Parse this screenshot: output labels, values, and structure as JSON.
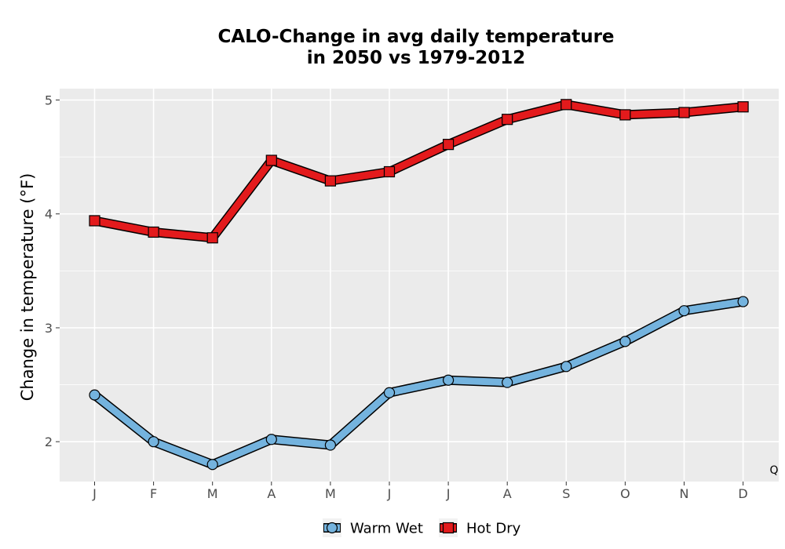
{
  "chart_data": {
    "type": "line",
    "title_line1": "CALO-Change in avg daily temperature",
    "title_line2": "in 2050 vs 1979-2012",
    "xlabel": "",
    "ylabel": "Change in temperature (°F)",
    "categories": [
      "J",
      "F",
      "M",
      "A",
      "M",
      "J",
      "J",
      "A",
      "S",
      "O",
      "N",
      "D"
    ],
    "ylim": [
      1.65,
      5.1
    ],
    "yticks": [
      2,
      3,
      4,
      5
    ],
    "grid": true,
    "legend_position": "bottom",
    "corner_label": "Q",
    "series": [
      {
        "name": "Warm Wet",
        "marker": "circle",
        "color": "#74b3de",
        "values": [
          2.41,
          2.0,
          1.8,
          2.02,
          1.97,
          2.43,
          2.54,
          2.52,
          2.66,
          2.88,
          3.15,
          3.23
        ]
      },
      {
        "name": "Hot Dry",
        "marker": "square",
        "color": "#e31a1c",
        "values": [
          3.94,
          3.84,
          3.79,
          4.47,
          4.29,
          4.37,
          4.61,
          4.83,
          4.96,
          4.87,
          4.89,
          4.94
        ]
      }
    ],
    "panel_color": "#ebebeb",
    "grid_color": "#ffffff"
  }
}
